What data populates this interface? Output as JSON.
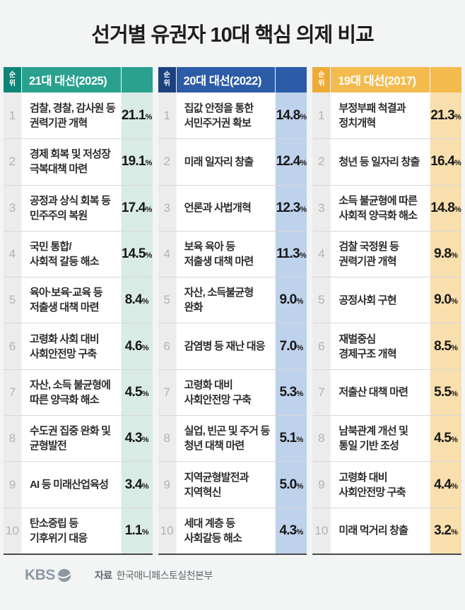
{
  "title": "선거별 유권자 10대 핵심 의제 비교",
  "rank_header": "순위",
  "percent_sign": "%",
  "columns": [
    {
      "title": "21대 대선(2025)",
      "colors": {
        "header": "#29a18e",
        "rank_box": "#0f8578",
        "pct_bg": "#d9ebe5"
      },
      "rows": [
        {
          "rank": "1",
          "issue": "검찰, 경찰, 감사원 등\n권력기관 개혁",
          "value": "21.1"
        },
        {
          "rank": "2",
          "issue": "경제 회복 및 저성장\n극복대책 마련",
          "value": "19.1"
        },
        {
          "rank": "3",
          "issue": "공정과 상식 회복 등\n민주주의 복원",
          "value": "17.4"
        },
        {
          "rank": "4",
          "issue": "국민 통합/\n사회적 갈등 해소",
          "value": "14.5"
        },
        {
          "rank": "5",
          "issue": "육아·보육·교육 등\n저출생 대책 마련",
          "value": "8.4"
        },
        {
          "rank": "6",
          "issue": "고령화 사회 대비\n사회안전망 구축",
          "value": "4.6"
        },
        {
          "rank": "7",
          "issue": "자산, 소득 불균형에\n따른 양극화 해소",
          "value": "4.5"
        },
        {
          "rank": "8",
          "issue": "수도권 집중 완화 및\n균형발전",
          "value": "4.3"
        },
        {
          "rank": "9",
          "issue": "AI 등 미래산업육성",
          "value": "3.4"
        },
        {
          "rank": "10",
          "issue": "탄소중립 등\n기후위기 대응",
          "value": "1.1"
        }
      ]
    },
    {
      "title": "20대 대선(2022)",
      "colors": {
        "header": "#2c5ca8",
        "rank_box": "#1d4180",
        "pct_bg": "#bfd2ec"
      },
      "rows": [
        {
          "rank": "1",
          "issue": "집값 안정을 통한\n서민주거권 확보",
          "value": "14.8"
        },
        {
          "rank": "2",
          "issue": "미래 일자리 창출",
          "value": "12.4"
        },
        {
          "rank": "3",
          "issue": "언론과 사법개혁",
          "value": "12.3"
        },
        {
          "rank": "4",
          "issue": "보육 육아 등\n저출생 대책 마련",
          "value": "11.3"
        },
        {
          "rank": "5",
          "issue": "자산, 소득불균형\n완화",
          "value": "9.0"
        },
        {
          "rank": "6",
          "issue": "감염병 등 재난 대응",
          "value": "7.0"
        },
        {
          "rank": "7",
          "issue": "고령화 대비\n사회안전망 구축",
          "value": "5.3"
        },
        {
          "rank": "8",
          "issue": "실업, 빈곤 및 주거 등\n청년 대책 마련",
          "value": "5.1"
        },
        {
          "rank": "9",
          "issue": "지역균형발전과\n지역혁신",
          "value": "5.0"
        },
        {
          "rank": "10",
          "issue": "세대 계층 등\n사회갈등 해소",
          "value": "4.3"
        }
      ]
    },
    {
      "title": "19대 대선(2017)",
      "colors": {
        "header": "#f3ba4e",
        "rank_box": "#edaa35",
        "pct_bg": "#f8dfad"
      },
      "rows": [
        {
          "rank": "1",
          "issue": "부정부패 척결과\n정치개혁",
          "value": "21.3"
        },
        {
          "rank": "2",
          "issue": "청년 등 일자리 창출",
          "value": "16.4"
        },
        {
          "rank": "3",
          "issue": "소득 불균형에 따른\n사회적 양극화 해소",
          "value": "14.8"
        },
        {
          "rank": "4",
          "issue": "검찰 국정원 등\n권력기관 개혁",
          "value": "9.8"
        },
        {
          "rank": "5",
          "issue": "공정사회 구현",
          "value": "9.0"
        },
        {
          "rank": "6",
          "issue": "재벌중심\n경제구조 개혁",
          "value": "8.5"
        },
        {
          "rank": "7",
          "issue": "저출산 대책 마련",
          "value": "5.5"
        },
        {
          "rank": "8",
          "issue": "남북관계 개선 및\n통일 기반 조성",
          "value": "4.5"
        },
        {
          "rank": "9",
          "issue": "고령화 대비\n사회안전망 구축",
          "value": "4.4"
        },
        {
          "rank": "10",
          "issue": "미래 먹거리 창출",
          "value": "3.2"
        }
      ]
    }
  ],
  "footer": {
    "logo": "KBS",
    "source_label": "자료",
    "source_name": "한국매니페스토실천본부"
  },
  "chart_data": {
    "type": "table",
    "title": "선거별 유권자 10대 핵심 의제 비교",
    "unit": "%",
    "groups": [
      {
        "election": "21대 대선(2025)",
        "items": [
          {
            "rank": 1,
            "issue": "검찰, 경찰, 감사원 등 권력기관 개혁",
            "value": 21.1
          },
          {
            "rank": 2,
            "issue": "경제 회복 및 저성장 극복대책 마련",
            "value": 19.1
          },
          {
            "rank": 3,
            "issue": "공정과 상식 회복 등 민주주의 복원",
            "value": 17.4
          },
          {
            "rank": 4,
            "issue": "국민 통합/사회적 갈등 해소",
            "value": 14.5
          },
          {
            "rank": 5,
            "issue": "육아·보육·교육 등 저출생 대책 마련",
            "value": 8.4
          },
          {
            "rank": 6,
            "issue": "고령화 사회 대비 사회안전망 구축",
            "value": 4.6
          },
          {
            "rank": 7,
            "issue": "자산, 소득 불균형에 따른 양극화 해소",
            "value": 4.5
          },
          {
            "rank": 8,
            "issue": "수도권 집중 완화 및 균형발전",
            "value": 4.3
          },
          {
            "rank": 9,
            "issue": "AI 등 미래산업육성",
            "value": 3.4
          },
          {
            "rank": 10,
            "issue": "탄소중립 등 기후위기 대응",
            "value": 1.1
          }
        ]
      },
      {
        "election": "20대 대선(2022)",
        "items": [
          {
            "rank": 1,
            "issue": "집값 안정을 통한 서민주거권 확보",
            "value": 14.8
          },
          {
            "rank": 2,
            "issue": "미래 일자리 창출",
            "value": 12.4
          },
          {
            "rank": 3,
            "issue": "언론과 사법개혁",
            "value": 12.3
          },
          {
            "rank": 4,
            "issue": "보육 육아 등 저출생 대책 마련",
            "value": 11.3
          },
          {
            "rank": 5,
            "issue": "자산, 소득불균형 완화",
            "value": 9.0
          },
          {
            "rank": 6,
            "issue": "감염병 등 재난 대응",
            "value": 7.0
          },
          {
            "rank": 7,
            "issue": "고령화 대비 사회안전망 구축",
            "value": 5.3
          },
          {
            "rank": 8,
            "issue": "실업, 빈곤 및 주거 등 청년 대책 마련",
            "value": 5.1
          },
          {
            "rank": 9,
            "issue": "지역균형발전과 지역혁신",
            "value": 5.0
          },
          {
            "rank": 10,
            "issue": "세대 계층 등 사회갈등 해소",
            "value": 4.3
          }
        ]
      },
      {
        "election": "19대 대선(2017)",
        "items": [
          {
            "rank": 1,
            "issue": "부정부패 척결과 정치개혁",
            "value": 21.3
          },
          {
            "rank": 2,
            "issue": "청년 등 일자리 창출",
            "value": 16.4
          },
          {
            "rank": 3,
            "issue": "소득 불균형에 따른 사회적 양극화 해소",
            "value": 14.8
          },
          {
            "rank": 4,
            "issue": "검찰 국정원 등 권력기관 개혁",
            "value": 9.8
          },
          {
            "rank": 5,
            "issue": "공정사회 구현",
            "value": 9.0
          },
          {
            "rank": 6,
            "issue": "재벌중심 경제구조 개혁",
            "value": 8.5
          },
          {
            "rank": 7,
            "issue": "저출산 대책 마련",
            "value": 5.5
          },
          {
            "rank": 8,
            "issue": "남북관계 개선 및 통일 기반 조성",
            "value": 4.5
          },
          {
            "rank": 9,
            "issue": "고령화 대비 사회안전망 구축",
            "value": 4.4
          },
          {
            "rank": 10,
            "issue": "미래 먹거리 창출",
            "value": 3.2
          }
        ]
      }
    ]
  }
}
